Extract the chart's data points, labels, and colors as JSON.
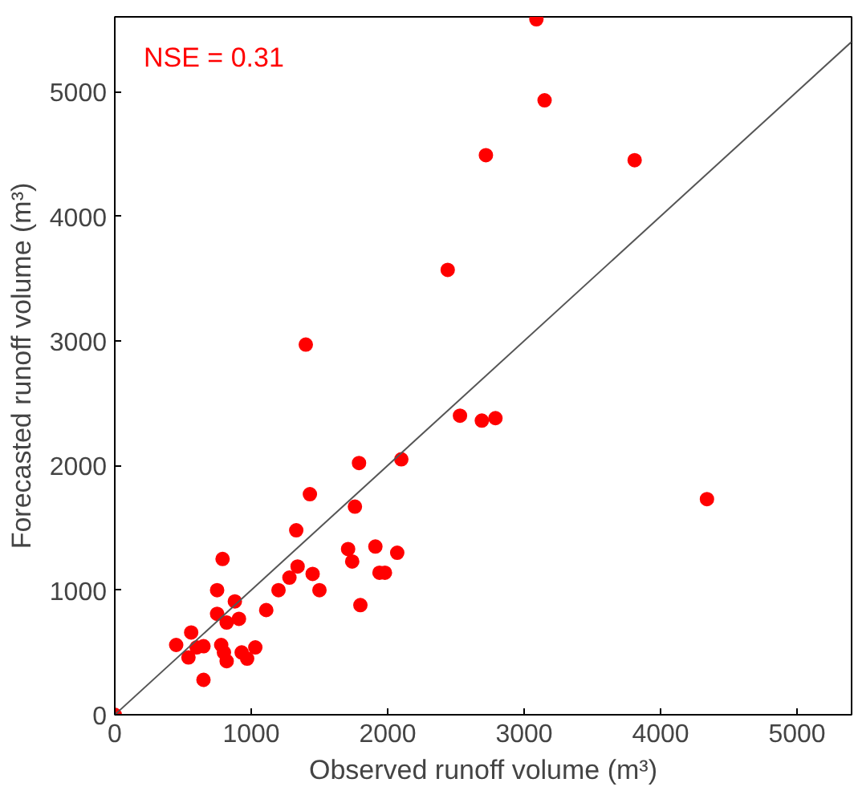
{
  "chart_data": {
    "type": "scatter",
    "xlabel": "Observed runoff volume (m³)",
    "ylabel": "Forecasted runoff volume (m³)",
    "annotations": [
      "NSE = 0.31"
    ],
    "xlim": [
      0,
      5400
    ],
    "ylim": [
      0,
      5600
    ],
    "xticks": [
      0,
      1000,
      2000,
      3000,
      4000,
      5000
    ],
    "yticks": [
      0,
      1000,
      2000,
      3000,
      4000,
      5000
    ],
    "grid": false,
    "marker": "circle",
    "series": [
      {
        "color": "#ff0000",
        "x": [
          0,
          3090,
          3150,
          2720,
          3810,
          2440,
          1400,
          1430,
          2530,
          2690,
          2790,
          1790,
          2100,
          1760,
          4340,
          1330,
          790,
          1710,
          1910,
          2070,
          1740,
          1340,
          1450,
          1280,
          1940,
          1980,
          1200,
          1500,
          750,
          1800,
          880,
          1110,
          750,
          910,
          820,
          560,
          450,
          650,
          600,
          780,
          800,
          1030,
          930,
          540,
          820,
          970,
          650
        ],
        "values": [
          0,
          5580,
          4930,
          4490,
          4450,
          3570,
          2970,
          1770,
          2400,
          2360,
          2380,
          2020,
          2050,
          1670,
          1730,
          1480,
          1250,
          1330,
          1350,
          1300,
          1230,
          1190,
          1130,
          1100,
          1140,
          1140,
          1000,
          1000,
          1000,
          880,
          910,
          840,
          810,
          770,
          740,
          660,
          560,
          550,
          540,
          560,
          500,
          540,
          500,
          460,
          430,
          450,
          280
        ]
      },
      {
        "type": "line",
        "color": "#555555",
        "x": [
          0,
          5400
        ],
        "values": [
          0,
          5400
        ],
        "marker": "none"
      }
    ]
  }
}
